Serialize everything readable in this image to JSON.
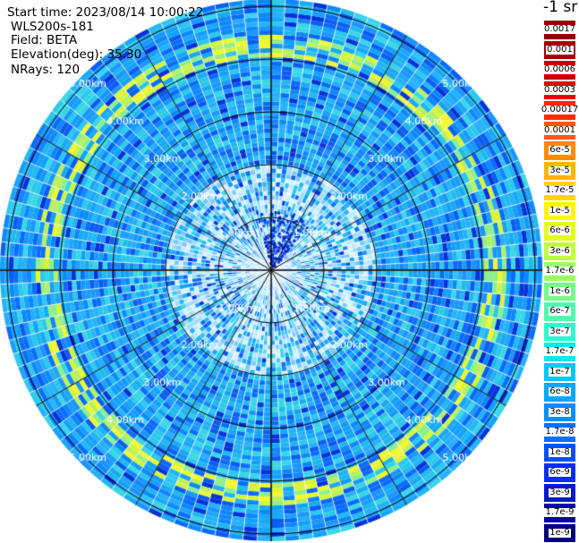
{
  "info": {
    "start_time": "Start time: 2023/08/14 10:00:22",
    "device": "WLS200s-181",
    "field": "Field: BETA",
    "elevation": "Elevation(deg): 35.30",
    "nrays": "NRays: 120"
  },
  "unit_label": "-1 sr",
  "range_labels": [
    "1.00km",
    "2.00km",
    "3.00km",
    "4.00km",
    "5.00km"
  ],
  "colorbar": [
    {
      "label": "0.0017",
      "color": "#8b0000"
    },
    {
      "label": "0.001",
      "color": "#a80000"
    },
    {
      "label": "0.0006",
      "color": "#c80000"
    },
    {
      "label": "0.0003",
      "color": "#e30000"
    },
    {
      "label": "0.00017",
      "color": "#ff2a00"
    },
    {
      "label": "0.0001",
      "color": "#ff5800"
    },
    {
      "label": "6e-5",
      "color": "#ff8a00"
    },
    {
      "label": "3e-5",
      "color": "#ffb400"
    },
    {
      "label": "1.7e-5",
      "color": "#ffd800"
    },
    {
      "label": "1e-5",
      "color": "#fff600"
    },
    {
      "label": "6e-6",
      "color": "#e4ff1a"
    },
    {
      "label": "3e-6",
      "color": "#c0ff3c"
    },
    {
      "label": "1.7e-6",
      "color": "#9cff60"
    },
    {
      "label": "1e-6",
      "color": "#72ff86"
    },
    {
      "label": "6e-7",
      "color": "#4cffac"
    },
    {
      "label": "3e-7",
      "color": "#2afcd0"
    },
    {
      "label": "1.7e-7",
      "color": "#14e6f0"
    },
    {
      "label": "1e-7",
      "color": "#00c8ff"
    },
    {
      "label": "6e-8",
      "color": "#00a8ff"
    },
    {
      "label": "3e-8",
      "color": "#0090ff"
    },
    {
      "label": "1.7e-8",
      "color": "#0070ff"
    },
    {
      "label": "1e-8",
      "color": "#0050ff"
    },
    {
      "label": "6e-9",
      "color": "#0030f0"
    },
    {
      "label": "3e-9",
      "color": "#0018d0"
    },
    {
      "label": "1.7e-9",
      "color": "#0000b0"
    },
    {
      "label": "1e-9",
      "color": "#000080"
    }
  ],
  "colors": {
    "background_field": "#1e8cff",
    "range_ring": "#000000",
    "spoke": "#000000",
    "ring_highlight": "#d6f53a"
  }
}
